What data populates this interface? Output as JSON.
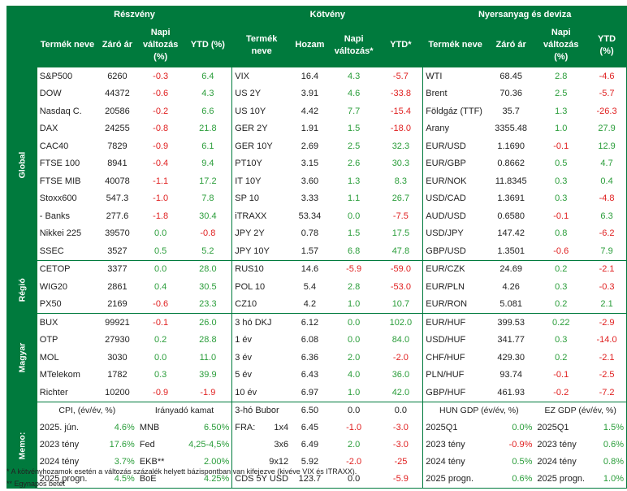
{
  "headers": {
    "section1": "Részvény",
    "section2": "Kötvény",
    "section3": "Nyersanyag és deviza"
  },
  "subheaders": {
    "s1": [
      "Termék neve",
      "Záró ár",
      "Napi változás (%)",
      "YTD (%)"
    ],
    "s2": [
      "Termék neve",
      "Hozam",
      "Napi változás*",
      "YTD*"
    ],
    "s3": [
      "Termék neve",
      "Záró ár",
      "Napi változás (%)",
      "YTD (%)"
    ]
  },
  "side_labels": {
    "global": "Global",
    "regio": "Régió",
    "magyar": "Magyar",
    "memo": "Memo:"
  },
  "rows": [
    {
      "g": "global",
      "a": [
        "S&P500",
        "6260",
        "-0.3",
        "6.4"
      ],
      "b": [
        "VIX",
        "16.4",
        "4.3",
        "-5.7"
      ],
      "c": [
        "WTI",
        "68.45",
        "2.8",
        "-4.6"
      ]
    },
    {
      "g": "global",
      "a": [
        "DOW",
        "44372",
        "-0.6",
        "4.3"
      ],
      "b": [
        "US 2Y",
        "3.91",
        "4.6",
        "-33.8"
      ],
      "c": [
        "Brent",
        "70.36",
        "2.5",
        "-5.7"
      ]
    },
    {
      "g": "global",
      "a": [
        "Nasdaq C.",
        "20586",
        "-0.2",
        "6.6"
      ],
      "b": [
        "US 10Y",
        "4.42",
        "7.7",
        "-15.4"
      ],
      "c": [
        "Földgáz (TTF)",
        "35.7",
        "1.3",
        "-26.3"
      ]
    },
    {
      "g": "global",
      "a": [
        "DAX",
        "24255",
        "-0.8",
        "21.8"
      ],
      "b": [
        "GER 2Y",
        "1.91",
        "1.5",
        "-18.0"
      ],
      "c": [
        "Arany",
        "3355.48",
        "1.0",
        "27.9"
      ]
    },
    {
      "g": "global",
      "a": [
        "CAC40",
        "7829",
        "-0.9",
        "6.1"
      ],
      "b": [
        "GER 10Y",
        "2.69",
        "2.5",
        "32.3"
      ],
      "c": [
        "EUR/USD",
        "1.1690",
        "-0.1",
        "12.9"
      ]
    },
    {
      "g": "global",
      "a": [
        "FTSE 100",
        "8941",
        "-0.4",
        "9.4"
      ],
      "b": [
        "PT10Y",
        "3.15",
        "2.6",
        "30.3"
      ],
      "c": [
        "EUR/GBP",
        "0.8662",
        "0.5",
        "4.7"
      ]
    },
    {
      "g": "global",
      "a": [
        "FTSE MIB",
        "40078",
        "-1.1",
        "17.2"
      ],
      "b": [
        "IT 10Y",
        "3.60",
        "1.3",
        "8.3"
      ],
      "c": [
        "EUR/NOK",
        "11.8345",
        "0.3",
        "0.4"
      ]
    },
    {
      "g": "global",
      "a": [
        "Stoxx600",
        "547.3",
        "-1.0",
        "7.8"
      ],
      "b": [
        "SP 10",
        "3.33",
        "1.1",
        "26.7"
      ],
      "c": [
        "USD/CAD",
        "1.3691",
        "0.3",
        "-4.8"
      ]
    },
    {
      "g": "global",
      "a": [
        "- Banks",
        "277.6",
        "-1.8",
        "30.4"
      ],
      "b": [
        "iTRAXX",
        "53.34",
        "0.0",
        "-7.5"
      ],
      "c": [
        "AUD/USD",
        "0.6580",
        "-0.1",
        "6.3"
      ]
    },
    {
      "g": "global",
      "a": [
        "Nikkei 225",
        "39570",
        "0.0",
        "-0.8"
      ],
      "b": [
        "JPY 2Y",
        "0.78",
        "1.5",
        "17.5"
      ],
      "c": [
        "USD/JPY",
        "147.42",
        "0.8",
        "-6.2"
      ]
    },
    {
      "g": "global",
      "a": [
        "SSEC",
        "3527",
        "0.5",
        "5.2"
      ],
      "b": [
        "JPY 10Y",
        "1.57",
        "6.8",
        "47.8"
      ],
      "c": [
        "GBP/USD",
        "1.3501",
        "-0.6",
        "7.9"
      ]
    },
    {
      "g": "regio",
      "a": [
        "CETOP",
        "3377",
        "0.0",
        "28.0"
      ],
      "b": [
        "RUS10",
        "14.6",
        "-5.9",
        "-59.0"
      ],
      "c": [
        "EUR/CZK",
        "24.69",
        "0.2",
        "-2.1"
      ]
    },
    {
      "g": "regio",
      "a": [
        "WIG20",
        "2861",
        "0.4",
        "30.5"
      ],
      "b": [
        "POL 10",
        "5.4",
        "2.8",
        "-53.0"
      ],
      "c": [
        "EUR/PLN",
        "4.26",
        "0.3",
        "-0.3"
      ]
    },
    {
      "g": "regio",
      "a": [
        "PX50",
        "2169",
        "-0.6",
        "23.3"
      ],
      "b": [
        "CZ10",
        "4.2",
        "1.0",
        "10.7"
      ],
      "c": [
        "EUR/RON",
        "5.081",
        "0.2",
        "2.1"
      ]
    },
    {
      "g": "magyar",
      "a": [
        "BUX",
        "99921",
        "-0.1",
        "26.0"
      ],
      "b": [
        "3 hó DKJ",
        "6.12",
        "0.0",
        "102.0"
      ],
      "c": [
        "EUR/HUF",
        "399.53",
        "0.22",
        "-2.9"
      ]
    },
    {
      "g": "magyar",
      "a": [
        "OTP",
        "27930",
        "0.2",
        "28.8"
      ],
      "b": [
        "1 év",
        "6.08",
        "0.0",
        "84.0"
      ],
      "c": [
        "USD/HUF",
        "341.77",
        "0.3",
        "-14.0"
      ]
    },
    {
      "g": "magyar",
      "a": [
        "MOL",
        "3030",
        "0.0",
        "11.0"
      ],
      "b": [
        "3 év",
        "6.36",
        "2.0",
        "-2.0"
      ],
      "c": [
        "CHF/HUF",
        "429.30",
        "0.2",
        "-2.1"
      ]
    },
    {
      "g": "magyar",
      "a": [
        "MTelekom",
        "1782",
        "0.3",
        "39.9"
      ],
      "b": [
        "5 év",
        "6.43",
        "4.0",
        "36.0"
      ],
      "c": [
        "PLN/HUF",
        "93.74",
        "-0.1",
        "-2.5"
      ]
    },
    {
      "g": "magyar",
      "a": [
        "Richter",
        "10200",
        "-0.9",
        "-1.9"
      ],
      "b": [
        "10 év",
        "6.97",
        "1.0",
        "42.0"
      ],
      "c": [
        "GBP/HUF",
        "461.93",
        "-0.2",
        "-7.2"
      ]
    }
  ],
  "memo": {
    "cpi_title": "CPI, (év/év, %)",
    "rate_title": "Irányadó kamat",
    "hungdp_title": "HUN GDP (év/év, %)",
    "ezgdp_title": "EZ GDP (év/év, %)",
    "bubor_label": "3-hó Bubor",
    "bubor": [
      "6.50",
      "0.0",
      "0.0"
    ],
    "fra_label": "FRA:",
    "rows": [
      {
        "cpi": [
          "2025. jún.",
          "4.6%"
        ],
        "rate": [
          "MNB",
          "6.50%"
        ],
        "fra": [
          "1x4",
          "6.45",
          "-1.0",
          "-3.0"
        ],
        "hun": [
          "2025Q1",
          "0.0%"
        ],
        "ez": [
          "2025Q1",
          "1.5%"
        ]
      },
      {
        "cpi": [
          "2023 tény",
          "17.6%"
        ],
        "rate": [
          "Fed",
          "4,25-4,5%"
        ],
        "fra": [
          "3x6",
          "6.49",
          "2.0",
          "-3.0"
        ],
        "hun": [
          "2023 tény",
          "-0.9%"
        ],
        "ez": [
          "2023 tény",
          "0.6%"
        ]
      },
      {
        "cpi": [
          "2024 tény",
          "3.7%"
        ],
        "rate": [
          "EKB**",
          "2.00%"
        ],
        "fra": [
          "9x12",
          "5.92",
          "-2.0",
          "-25"
        ],
        "hun": [
          "2024 tény",
          "0.5%"
        ],
        "ez": [
          "2024 tény",
          "0.8%"
        ]
      },
      {
        "cpi": [
          "2025 progn.",
          "4.5%"
        ],
        "rate": [
          "BoE",
          "4.25%"
        ],
        "fra": [
          "CDS 5Y USD",
          "123.7",
          "0.0",
          "-5.9"
        ],
        "hun": [
          "2025 progn.",
          "0.6%"
        ],
        "ez": [
          "2025 progn.",
          "1.0%"
        ]
      }
    ]
  },
  "footnotes": [
    "* A kötvényhozamok esetén a változás százalék helyett bázispontban van kifejezve (kivéve VIX és ITRAXX).",
    "** Egynapos betét"
  ]
}
